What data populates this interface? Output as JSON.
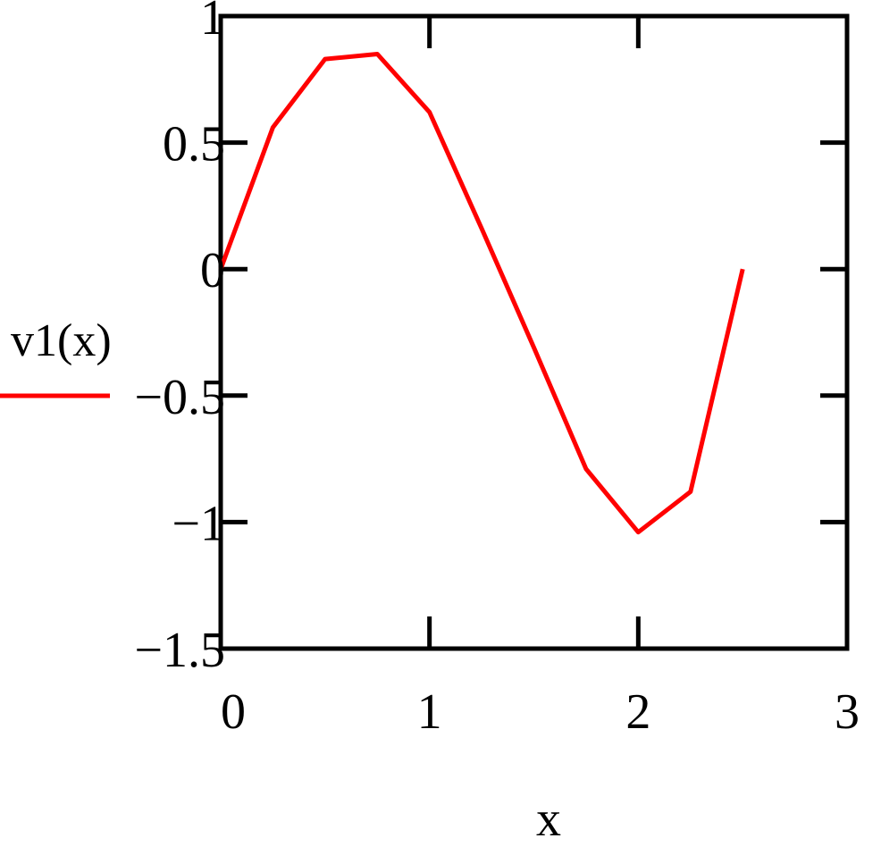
{
  "chart_data": {
    "type": "line",
    "title": "",
    "xlabel": "x",
    "ylabel": "",
    "xlim": [
      0,
      3
    ],
    "ylim": [
      -1.5,
      1
    ],
    "x_ticks": [
      "0",
      "1",
      "2",
      "3"
    ],
    "y_ticks": [
      "1",
      "0.5",
      "0",
      "−0.5",
      "−1",
      "−1.5"
    ],
    "y_tick_values": [
      1,
      0.5,
      0,
      -0.5,
      -1,
      -1.5
    ],
    "x_tick_values": [
      0,
      1,
      2,
      3
    ],
    "grid": false,
    "legend_placement": "left",
    "series": [
      {
        "name": "v1(x)",
        "color": "#ff0000",
        "x": [
          0,
          0.25,
          0.5,
          0.75,
          1.0,
          1.25,
          1.5,
          1.75,
          2.0,
          2.25,
          2.5
        ],
        "y": [
          0,
          0.56,
          0.83,
          0.85,
          0.62,
          0.16,
          -0.31,
          -0.79,
          -1.04,
          -0.88,
          0
        ]
      }
    ]
  }
}
